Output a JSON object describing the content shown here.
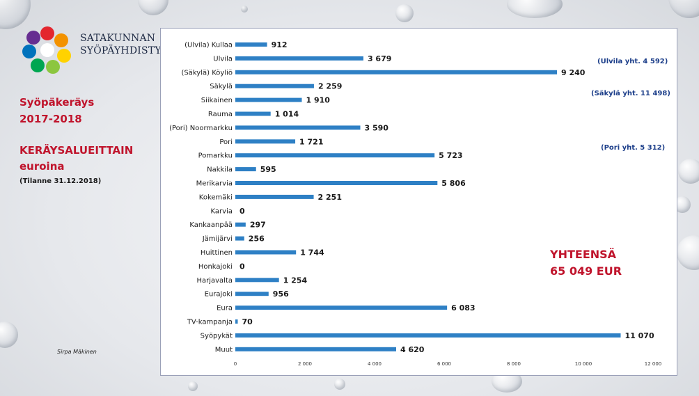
{
  "org": {
    "line1": "SATAKUNNAN",
    "line2": "SYÖPÄYHDISTYS"
  },
  "titles": {
    "line1": "Syöpäkeräys",
    "line2": "2017-2018",
    "line3": "KERÄYSALUEITTAIN",
    "line4": "euroina",
    "status": "(Tilanne 31.12.2018)"
  },
  "author": "Sirpa Mäkinen",
  "notes": {
    "ulvila": "(Ulvila yht.  4 592)",
    "sakyla": "(Säkylä yht. 11 498)",
    "pori": "(Pori yht. 5 312)"
  },
  "total": {
    "line1": "YHTEENSÄ",
    "line2": "65 049 EUR"
  },
  "colors": {
    "bar": "#2e80c5",
    "accent_red": "#c0142c",
    "note_blue": "#1d3f8a"
  },
  "chart_data": {
    "type": "bar",
    "orientation": "horizontal",
    "categories": [
      "(Ulvila) Kullaa",
      "Ulvila",
      "(Säkylä) Köyliö",
      "Säkylä",
      "Siikainen",
      "Rauma",
      "(Pori) Noormarkku",
      "Pori",
      "Pomarkku",
      "Nakkila",
      "Merikarvia",
      "Kokemäki",
      "Karvia",
      "Kankaanpää",
      "Jämijärvi",
      "Huittinen",
      "Honkajoki",
      "Harjavalta",
      "Eurajoki",
      "Eura",
      "TV-kampanja",
      "Syöpykät",
      "Muut"
    ],
    "values": [
      912,
      3679,
      9240,
      2259,
      1910,
      1014,
      3590,
      1721,
      5723,
      595,
      5806,
      2251,
      0,
      297,
      256,
      1744,
      0,
      1254,
      956,
      6083,
      70,
      11070,
      4620
    ],
    "value_labels": [
      "912",
      "3 679",
      "9 240",
      "2 259",
      "1 910",
      "1 014",
      "3 590",
      "1 721",
      "5 723",
      "595",
      "5 806",
      "2 251",
      "0",
      "297",
      "256",
      "1 744",
      "0",
      "1 254",
      "956",
      "6 083",
      "70",
      "11 070",
      "4 620"
    ],
    "xlim": [
      0,
      12000
    ],
    "xticks": [
      0,
      2000,
      4000,
      6000,
      8000,
      10000,
      12000
    ],
    "xtick_labels": [
      "0",
      "2 000",
      "4 000",
      "6 000",
      "8 000",
      "10 000",
      "12 000"
    ]
  }
}
